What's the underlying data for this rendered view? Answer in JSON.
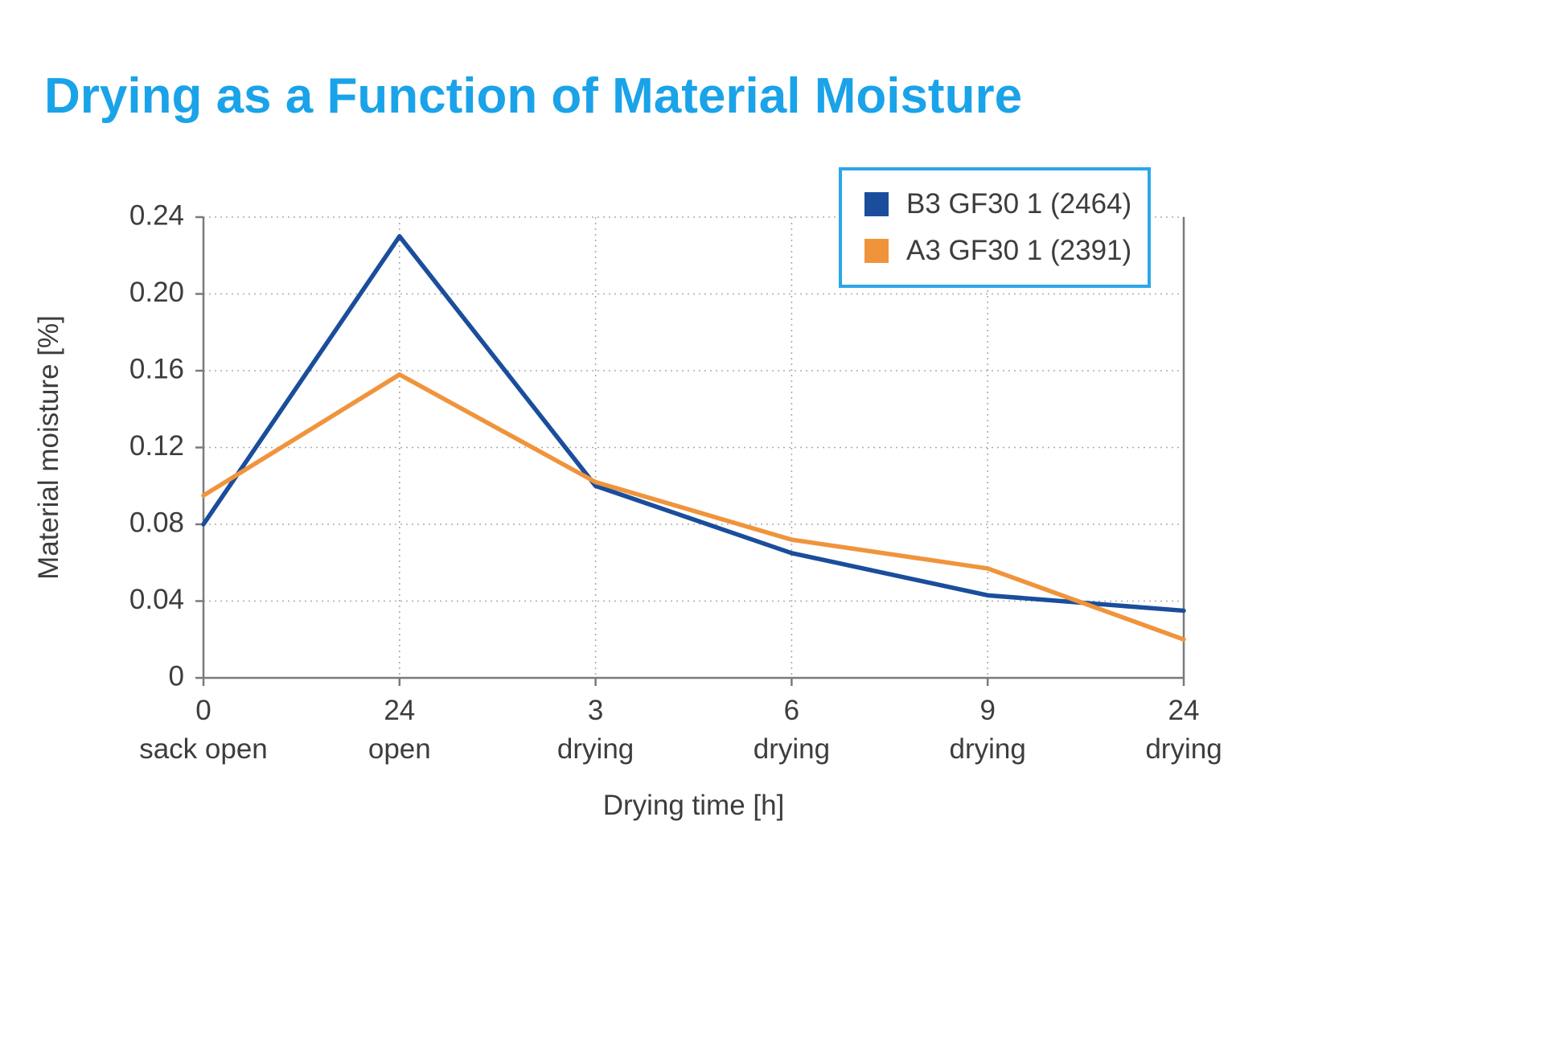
{
  "page": {
    "title": "Drying as a Function of Material Moisture",
    "title_color": "#1aa3e8",
    "legend_border_color": "#2ba7e8"
  },
  "chart_data": {
    "type": "line",
    "title": "Drying as a Function of Material Moisture",
    "xlabel": "Drying time [h]",
    "ylabel": "Material moisture [%]",
    "ylim": [
      0,
      0.24
    ],
    "grid": true,
    "legend_position": "top-right",
    "yticks": [
      {
        "value": 0,
        "label": "0"
      },
      {
        "value": 0.04,
        "label": "0.04"
      },
      {
        "value": 0.08,
        "label": "0.08"
      },
      {
        "value": 0.12,
        "label": "0.12"
      },
      {
        "value": 0.16,
        "label": "0.16"
      },
      {
        "value": 0.2,
        "label": "0.20"
      },
      {
        "value": 0.24,
        "label": "0.24"
      }
    ],
    "categories": [
      {
        "tick": "0",
        "sublabel": "sack open"
      },
      {
        "tick": "24",
        "sublabel": "open"
      },
      {
        "tick": "3",
        "sublabel": "drying"
      },
      {
        "tick": "6",
        "sublabel": "drying"
      },
      {
        "tick": "9",
        "sublabel": "drying"
      },
      {
        "tick": "24",
        "sublabel": "drying"
      }
    ],
    "series": [
      {
        "name": "B3 GF30 1 (2464)",
        "color": "#1a4e9c",
        "values": [
          0.08,
          0.23,
          0.1,
          0.065,
          0.043,
          0.035
        ]
      },
      {
        "name": "A3 GF30 1 (2391)",
        "color": "#f0943c",
        "values": [
          0.095,
          0.158,
          0.102,
          0.072,
          0.057,
          0.02
        ]
      }
    ]
  }
}
